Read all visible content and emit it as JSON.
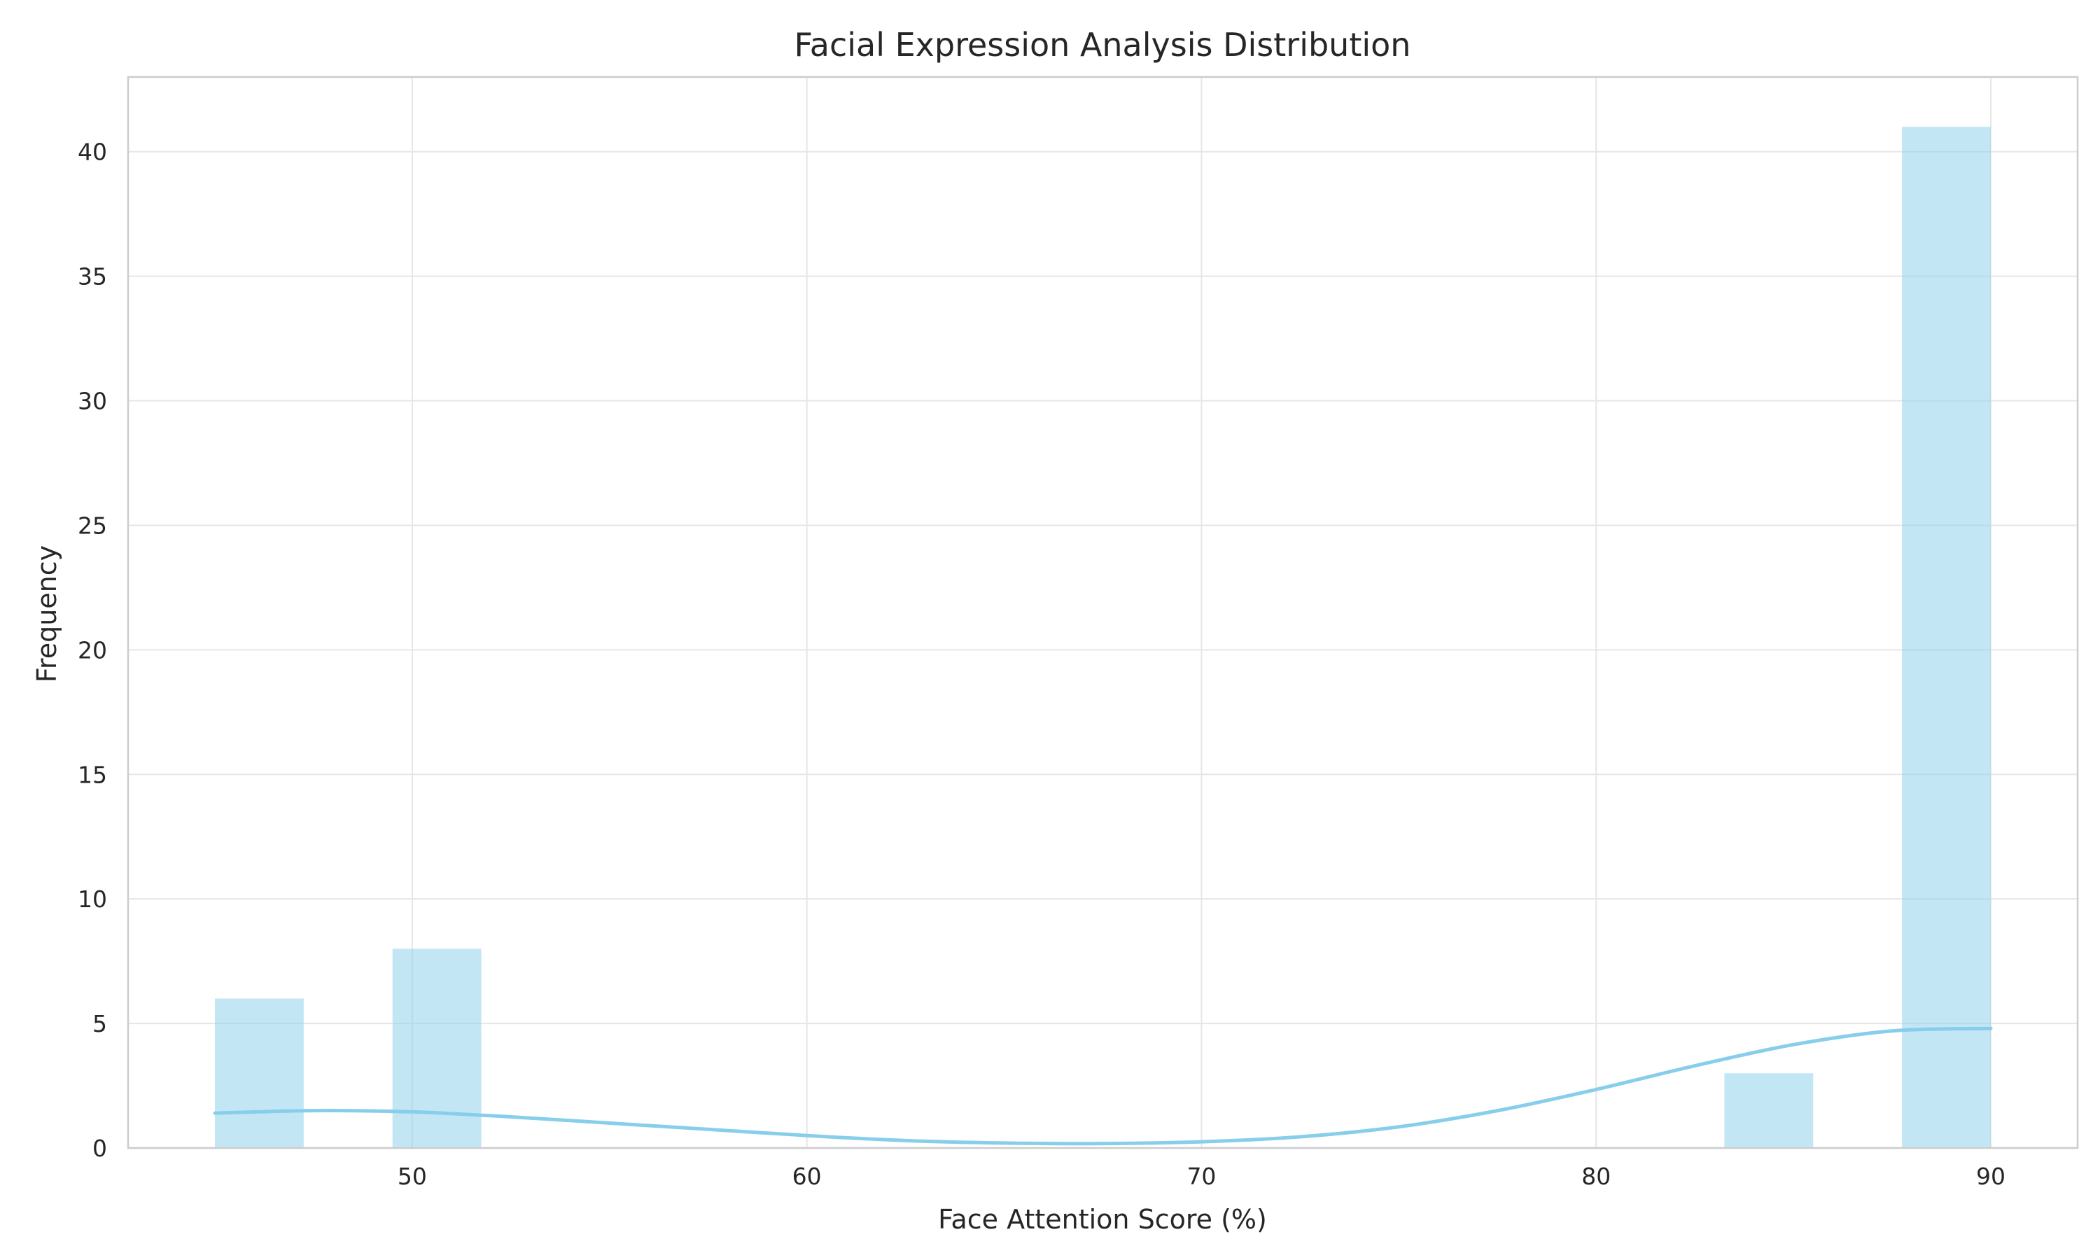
{
  "chart_data": {
    "type": "bar",
    "title": "Facial Expression Analysis Distribution",
    "xlabel": "Face Attention Score (%)",
    "ylabel": "Frequency",
    "xlim": [
      42.8,
      92.2
    ],
    "ylim": [
      0,
      43
    ],
    "xticks": [
      50,
      60,
      70,
      80,
      90
    ],
    "yticks": [
      0,
      5,
      10,
      15,
      20,
      25,
      30,
      35,
      40
    ],
    "grid": true,
    "bin_width": 2.25,
    "bins": [
      {
        "start": 45.0,
        "end": 47.25,
        "count": 6
      },
      {
        "start": 49.5,
        "end": 51.75,
        "count": 8
      },
      {
        "start": 83.25,
        "end": 85.5,
        "count": 3
      },
      {
        "start": 87.75,
        "end": 90.0,
        "count": 41
      }
    ],
    "kde": {
      "x": [
        45,
        47.5,
        50,
        52.5,
        55,
        57.5,
        60,
        62.5,
        65,
        67.5,
        70,
        72.5,
        75,
        77.5,
        80,
        82.5,
        85,
        87.5,
        90
      ],
      "y": [
        1.4,
        1.5,
        1.45,
        1.25,
        1.0,
        0.75,
        0.5,
        0.3,
        0.2,
        0.18,
        0.25,
        0.45,
        0.85,
        1.5,
        2.35,
        3.3,
        4.15,
        4.7,
        4.8
      ]
    },
    "colors": {
      "bar": "#87ceeb",
      "bar_opacity": 0.5,
      "kde_line": "#87ceeb",
      "grid": "#e6e6e6",
      "frame": "#cccccc",
      "text": "#262626"
    }
  }
}
